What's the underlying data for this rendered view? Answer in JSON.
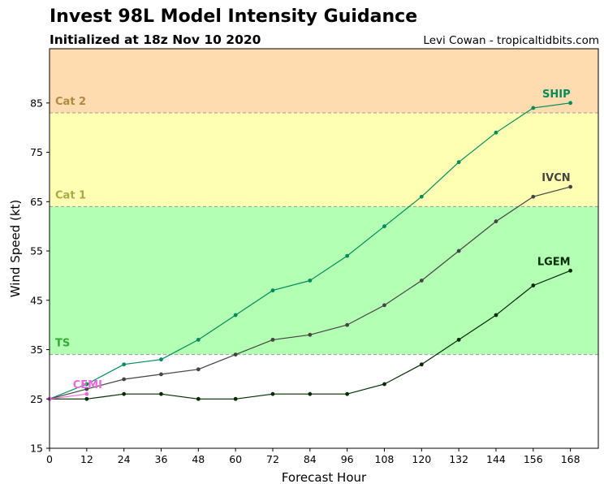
{
  "header": {
    "title": "Invest 98L Model Intensity Guidance",
    "subtitle": "Initialized at 18z Nov 10 2020",
    "credit": "Levi Cowan - tropicaltidbits.com"
  },
  "chart_data": {
    "type": "line",
    "title": "Invest 98L Model Intensity Guidance",
    "subtitle": "Initialized at 18z Nov 10 2020",
    "xlabel": "Forecast Hour",
    "ylabel": "Wind Speed (kt)",
    "xlim": [
      0,
      177
    ],
    "ylim": [
      15,
      96
    ],
    "xticks": [
      0,
      12,
      24,
      36,
      48,
      60,
      72,
      84,
      96,
      108,
      120,
      132,
      144,
      156,
      168
    ],
    "yticks": [
      15,
      25,
      35,
      45,
      55,
      65,
      75,
      85
    ],
    "grid": false,
    "intensity_bands": [
      {
        "label": "",
        "from": 15,
        "to": 34,
        "color": "#ffffff",
        "label_color": ""
      },
      {
        "label": "TS",
        "from": 34,
        "to": 64,
        "color": "#b3ffb3",
        "label_color": "#33aa33"
      },
      {
        "label": "Cat 1",
        "from": 64,
        "to": 83,
        "color": "#ffffb3",
        "label_color": "#aaaa44"
      },
      {
        "label": "Cat 2",
        "from": 83,
        "to": 96,
        "color": "#ffdcb0",
        "label_color": "#b08840"
      }
    ],
    "series": [
      {
        "name": "SHIP",
        "color": "#008c5a",
        "x": [
          0,
          12,
          24,
          36,
          48,
          60,
          72,
          84,
          96,
          108,
          120,
          132,
          144,
          156,
          168
        ],
        "y": [
          25,
          28,
          32,
          33,
          37,
          42,
          47,
          49,
          54,
          60,
          66,
          73,
          79,
          84,
          85
        ]
      },
      {
        "name": "IVCN",
        "color": "#444444",
        "x": [
          0,
          12,
          24,
          36,
          48,
          60,
          72,
          84,
          96,
          108,
          120,
          132,
          144,
          156,
          168
        ],
        "y": [
          25,
          27,
          29,
          30,
          31,
          34,
          37,
          38,
          40,
          44,
          49,
          55,
          61,
          66,
          68
        ]
      },
      {
        "name": "LGEM",
        "color": "#002a00",
        "x": [
          0,
          12,
          24,
          36,
          48,
          60,
          72,
          84,
          96,
          108,
          120,
          132,
          144,
          156,
          168
        ],
        "y": [
          25,
          25,
          26,
          26,
          25,
          25,
          26,
          26,
          26,
          28,
          32,
          37,
          42,
          48,
          51
        ]
      },
      {
        "name": "CEMI",
        "color": "#ee66dd",
        "x": [
          0,
          12
        ],
        "y": [
          25,
          26
        ]
      }
    ]
  }
}
